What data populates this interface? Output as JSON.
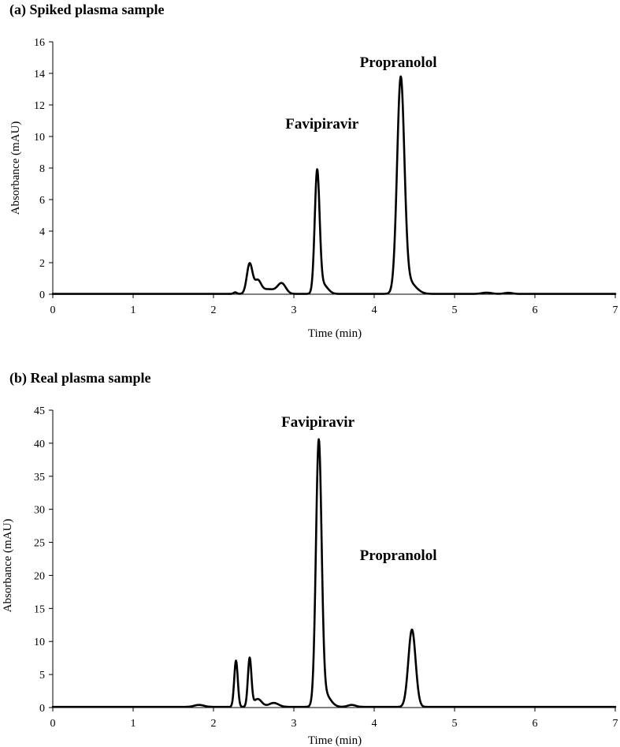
{
  "chart_data": [
    {
      "type": "line",
      "title": "(a) Spiked plasma sample",
      "xlabel": "Time (min)",
      "ylabel": "Absorbance (mAU)",
      "xlim": [
        0,
        7
      ],
      "ylim": [
        0,
        16
      ],
      "xticks": [
        0,
        1,
        2,
        3,
        4,
        5,
        6,
        7
      ],
      "yticks": [
        0,
        2,
        4,
        6,
        8,
        10,
        12,
        14,
        16
      ],
      "grid": false,
      "annotations": [
        {
          "text": "Favipiravir",
          "x": 3.35,
          "y": 10.5
        },
        {
          "text": "Propranolol",
          "x": 4.3,
          "y": 14.4
        }
      ],
      "series": [
        {
          "baseline": 0.02,
          "peaks": [
            {
              "rt": 2.27,
              "height": 0.1,
              "width": 0.02
            },
            {
              "rt": 2.45,
              "height": 1.9,
              "width": 0.035
            },
            {
              "rt": 2.55,
              "height": 0.75,
              "width": 0.04
            },
            {
              "rt": 2.68,
              "height": 0.3,
              "width": 0.1
            },
            {
              "rt": 2.85,
              "height": 0.62,
              "width": 0.05
            },
            {
              "rt": 3.29,
              "height": 7.6,
              "width": 0.03
            },
            {
              "rt": 3.36,
              "height": 0.6,
              "width": 0.06
            },
            {
              "rt": 4.33,
              "height": 13.3,
              "width": 0.045
            },
            {
              "rt": 4.42,
              "height": 0.8,
              "width": 0.09
            },
            {
              "rt": 5.4,
              "height": 0.08,
              "width": 0.06
            },
            {
              "rt": 5.67,
              "height": 0.07,
              "width": 0.05
            }
          ]
        }
      ]
    },
    {
      "type": "line",
      "title": "(b) Real plasma sample",
      "xlabel": "Time (min)",
      "ylabel": "Absorbance (mAU)",
      "xlim": [
        0,
        7
      ],
      "ylim": [
        0,
        45
      ],
      "xticks": [
        0,
        1,
        2,
        3,
        4,
        5,
        6,
        7
      ],
      "yticks": [
        0,
        5,
        10,
        15,
        20,
        25,
        30,
        35,
        40,
        45
      ],
      "grid": false,
      "annotations": [
        {
          "text": "Favipiravir",
          "x": 3.3,
          "y": 42.5
        },
        {
          "text": "Propranolol",
          "x": 4.3,
          "y": 22.3
        }
      ],
      "series": [
        {
          "baseline": 0.1,
          "peaks": [
            {
              "rt": 1.82,
              "height": 0.3,
              "width": 0.06
            },
            {
              "rt": 2.28,
              "height": 7.0,
              "width": 0.022
            },
            {
              "rt": 2.45,
              "height": 7.3,
              "width": 0.022
            },
            {
              "rt": 2.55,
              "height": 1.2,
              "width": 0.05
            },
            {
              "rt": 2.75,
              "height": 0.6,
              "width": 0.06
            },
            {
              "rt": 3.31,
              "height": 39.3,
              "width": 0.035
            },
            {
              "rt": 3.38,
              "height": 2.0,
              "width": 0.07
            },
            {
              "rt": 3.72,
              "height": 0.3,
              "width": 0.05
            },
            {
              "rt": 4.47,
              "height": 11.7,
              "width": 0.045
            }
          ]
        }
      ]
    }
  ]
}
